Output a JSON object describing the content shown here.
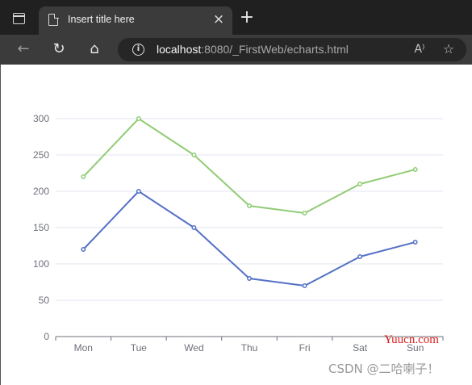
{
  "browser": {
    "tab": {
      "title": "Insert title here",
      "close_glyph": "×"
    },
    "new_tab_glyph": "+",
    "address": {
      "host": "localhost",
      "rest": ":8080/_FirstWeb/echarts.html"
    },
    "icons": {
      "tab_actions": "tab-actions-icon",
      "page": "page-icon",
      "back": "back-arrow-icon",
      "refresh": "refresh-icon",
      "home": "home-icon",
      "info": "info-icon",
      "read_aloud": "read-aloud-icon",
      "favorite": "favorite-add-icon"
    },
    "glyphs": {
      "back": "←",
      "refresh": "↻",
      "home": "⌂",
      "info": "i",
      "read_aloud": "A⁾",
      "favorite": "☆"
    }
  },
  "chart_data": {
    "type": "line",
    "categories": [
      "Mon",
      "Tue",
      "Wed",
      "Thu",
      "Fri",
      "Sat",
      "Sun"
    ],
    "series": [
      {
        "values": [
          120,
          200,
          150,
          80,
          70,
          110,
          130
        ],
        "color": "#5470c6"
      },
      {
        "values": [
          220,
          300,
          250,
          180,
          170,
          210,
          230
        ],
        "color": "#91cc75"
      }
    ],
    "yticks": [
      0,
      50,
      100,
      150,
      200,
      250,
      300
    ],
    "ylim": [
      0,
      300
    ],
    "grid": true,
    "title": "",
    "xlabel": "",
    "ylabel": ""
  },
  "watermarks": {
    "yuucn": "Yuucn.com",
    "csdn": "CSDN @二哈喇子！"
  }
}
